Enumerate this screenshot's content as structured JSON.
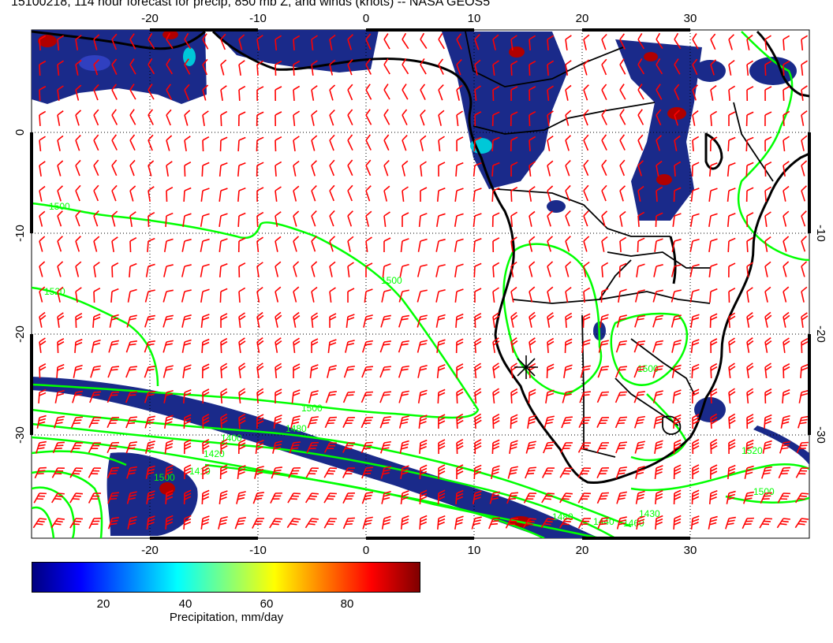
{
  "title": "15100218, 114 hour forecast for precip, 850 mb Z, and winds (knots) -- NASA GEOS5",
  "map": {
    "lon_ticks": [
      "-20",
      "-10",
      "0",
      "10",
      "20",
      "30"
    ],
    "lat_ticks": [
      "0",
      "-10",
      "-20",
      "-30"
    ],
    "lon_range": [
      -30,
      40
    ],
    "lat_range": [
      -40,
      10
    ],
    "contour_labels": [
      "1500",
      "1520",
      "1500",
      "1500",
      "1480",
      "1400",
      "1420",
      "1410",
      "1500",
      "1480",
      "1440",
      "1460",
      "1430",
      "1520",
      "1500",
      "1500"
    ],
    "colors": {
      "coast": "#000000",
      "barbs": "#ff0000",
      "contours": "#00ff00",
      "precip_low": "#1a2a8a",
      "precip_mid": "#00c8d8",
      "precip_high": "#b00000"
    }
  },
  "colorbar": {
    "title": "Precipitation, mm/day",
    "ticks": [
      "20",
      "40",
      "60",
      "80"
    ],
    "range": [
      0,
      100
    ],
    "colors": [
      "#00007f",
      "#0000ff",
      "#007fff",
      "#00ffff",
      "#7fff7f",
      "#ffff00",
      "#ff7f00",
      "#ff0000",
      "#7f0000"
    ]
  }
}
